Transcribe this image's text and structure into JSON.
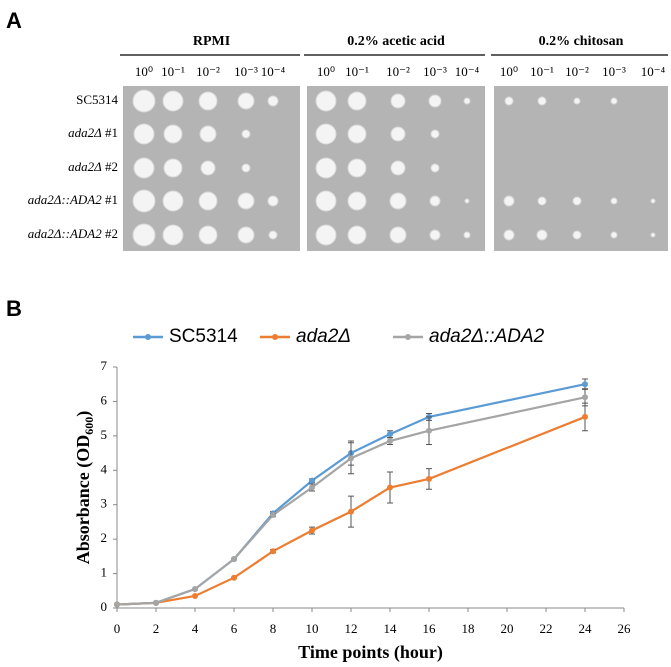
{
  "panel_a": {
    "label": "A",
    "conditions": [
      "RPMI",
      "0.2% acetic acid",
      "0.2% chitosan"
    ],
    "dilutions": [
      "10⁰",
      "10⁻¹",
      "10⁻²",
      "10⁻³",
      "10⁻⁴"
    ],
    "strains": [
      {
        "name": "SC5314",
        "italic": false
      },
      {
        "name": "ada2Δ",
        "suffix": "#1",
        "italic": true
      },
      {
        "name": "ada2Δ",
        "suffix": "#2",
        "italic": true
      },
      {
        "name": "ada2Δ::ADA2",
        "suffix": "#1",
        "italic": true
      },
      {
        "name": "ada2Δ::ADA2",
        "suffix": "#2",
        "italic": true
      }
    ]
  },
  "chart_data": {
    "type": "line",
    "panel_label": "B",
    "x_label": "Time points (hour)",
    "y_label": [
      "Absorbance (OD",
      "600",
      ")"
    ],
    "x": [
      0,
      2,
      4,
      6,
      8,
      10,
      12,
      14,
      16,
      24
    ],
    "series": [
      {
        "name": "SC5314",
        "color": "#5b9bd5",
        "italic": false,
        "values": [
          0.1,
          0.15,
          0.55,
          1.42,
          2.75,
          3.7,
          4.5,
          5.05,
          5.55,
          6.5
        ],
        "errors": [
          0,
          0,
          0,
          0,
          0.05,
          0.05,
          0.35,
          0.1,
          0.1,
          0.15
        ]
      },
      {
        "name": "ada2Δ",
        "color": "#ed7d31",
        "italic": true,
        "values": [
          0.1,
          0.15,
          0.35,
          0.88,
          1.65,
          2.25,
          2.8,
          3.5,
          3.75,
          5.55
        ],
        "errors": [
          0,
          0,
          0,
          0,
          0.05,
          0.1,
          0.45,
          0.45,
          0.3,
          0.4
        ]
      },
      {
        "name": "ada2Δ::ADA2",
        "color": "#a5a5a5",
        "italic": true,
        "values": [
          0.1,
          0.15,
          0.55,
          1.42,
          2.7,
          3.5,
          4.35,
          4.85,
          5.15,
          6.12
        ],
        "errors": [
          0,
          0,
          0,
          0,
          0.05,
          0.1,
          0.45,
          0.1,
          0.4,
          0.25
        ]
      }
    ],
    "xlim": [
      0,
      26
    ],
    "xticks": [
      0,
      2,
      4,
      6,
      8,
      10,
      12,
      14,
      16,
      18,
      20,
      22,
      24,
      26
    ],
    "ylim": [
      0,
      7
    ],
    "yticks": [
      0,
      1,
      2,
      3,
      4,
      5,
      6,
      7
    ],
    "grid": false,
    "legend": "top"
  }
}
